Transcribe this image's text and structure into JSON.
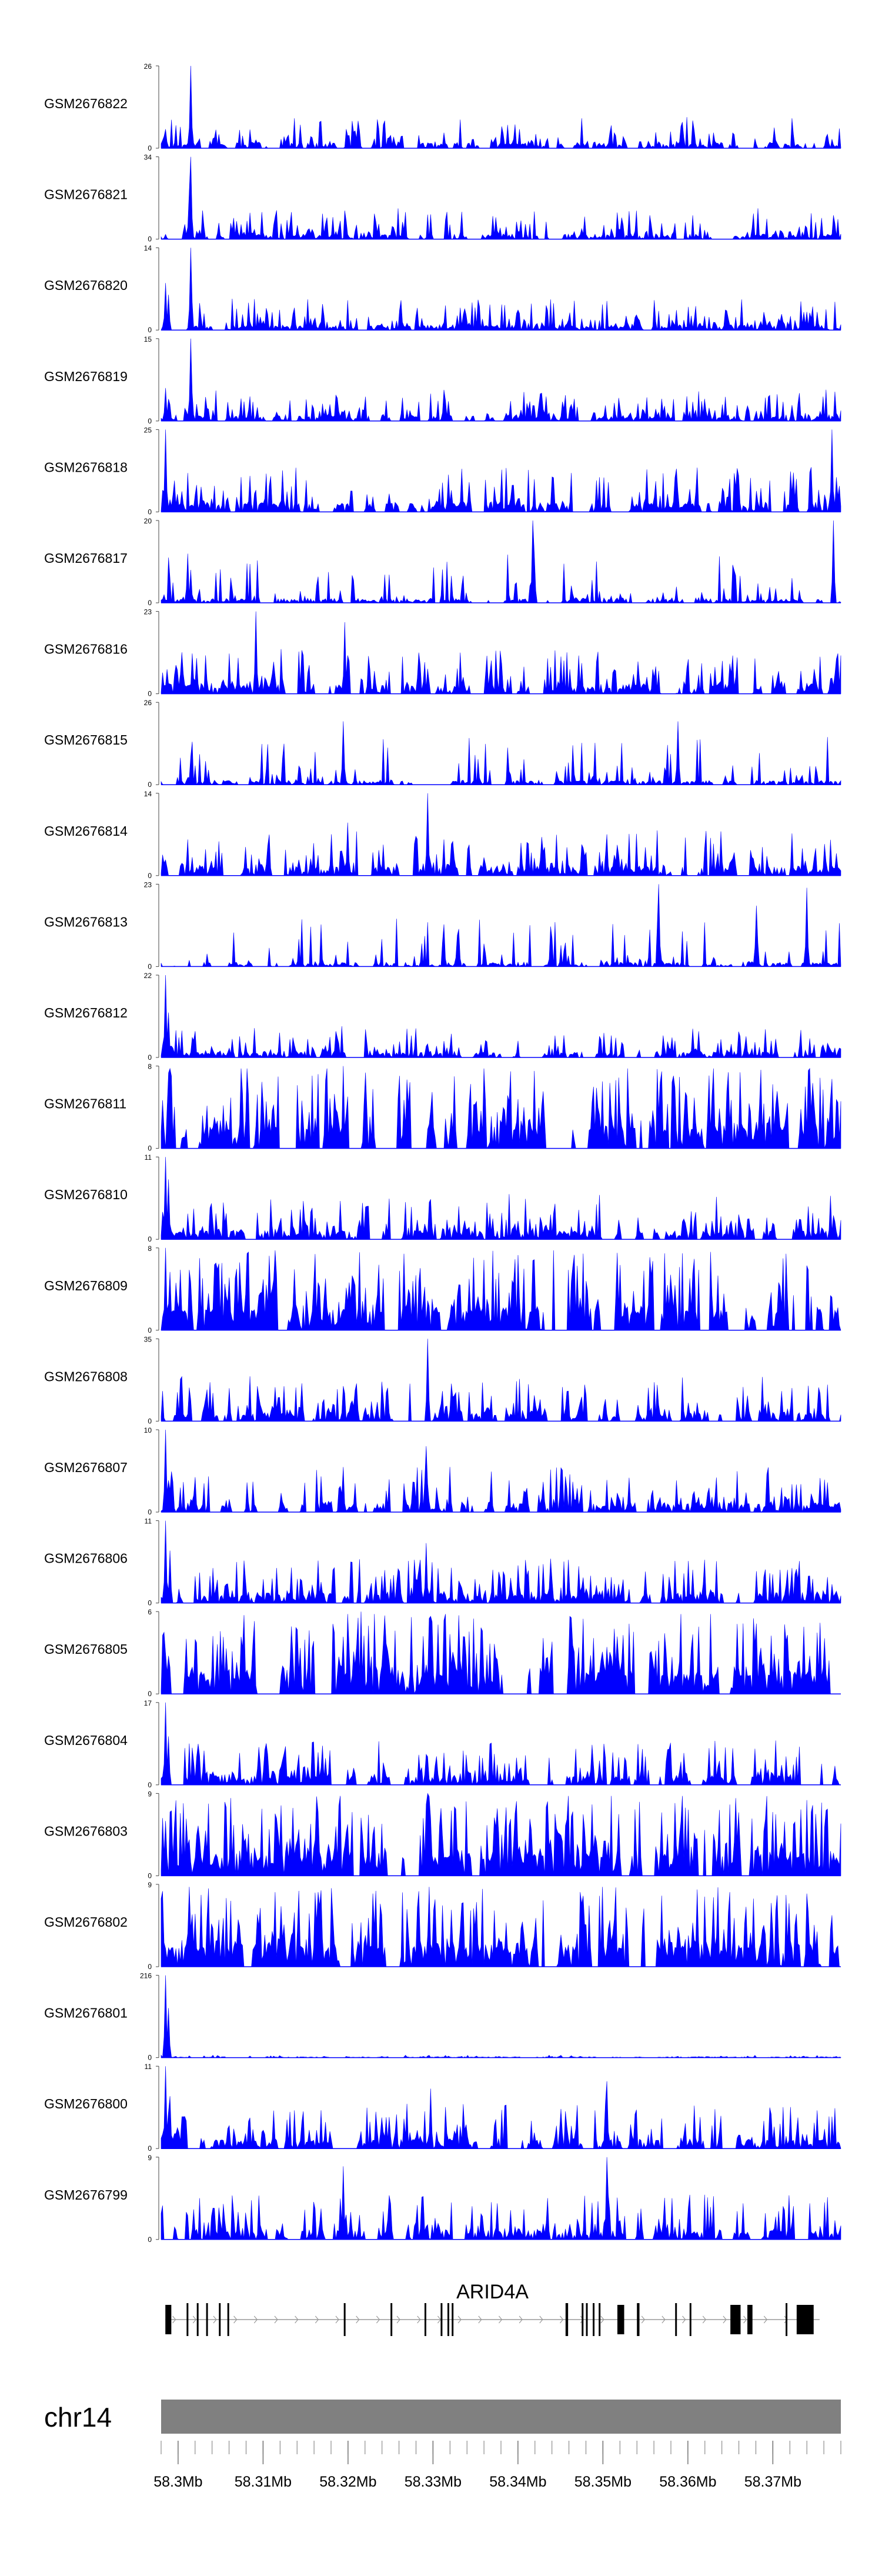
{
  "chart_data": {
    "type": "area",
    "color": "#0000ff",
    "gene_color": "#000000",
    "ideogram_color": "#808080",
    "x_range": [
      58.298,
      58.378
    ],
    "x_unit": "Mb",
    "x_ticks": [
      58.3,
      58.31,
      58.32,
      58.33,
      58.34,
      58.35,
      58.36,
      58.37
    ],
    "x_tick_labels": [
      "58.3Mb",
      "58.31Mb",
      "58.32Mb",
      "58.33Mb",
      "58.34Mb",
      "58.35Mb",
      "58.36Mb",
      "58.37Mb"
    ],
    "chromosome": "chr14",
    "gene": {
      "name": "ARID4A",
      "start": 58.2985,
      "end": 58.3755,
      "strand": "+",
      "exons": [
        [
          58.2985,
          58.2992
        ],
        [
          58.301,
          58.3012
        ],
        [
          58.3022,
          58.3024
        ],
        [
          58.3033,
          58.3035
        ],
        [
          58.3048,
          58.305
        ],
        [
          58.3058,
          58.306
        ],
        [
          58.3195,
          58.3197
        ],
        [
          58.325,
          58.3252
        ],
        [
          58.329,
          58.3292
        ],
        [
          58.3309,
          58.3311
        ],
        [
          58.3317,
          58.3319
        ],
        [
          58.3322,
          58.3324
        ],
        [
          58.3456,
          58.3459
        ],
        [
          58.3475,
          58.3477
        ],
        [
          58.348,
          58.3482
        ],
        [
          58.3488,
          58.349
        ],
        [
          58.3495,
          58.3497
        ],
        [
          58.3517,
          58.3525
        ],
        [
          58.354,
          58.3543
        ],
        [
          58.3585,
          58.3587
        ],
        [
          58.3602,
          58.3604
        ],
        [
          58.365,
          58.3662
        ],
        [
          58.367,
          58.3676
        ],
        [
          58.3715,
          58.3717
        ],
        [
          58.3728,
          58.3748
        ]
      ]
    },
    "tracks": [
      {
        "name": "GSM2676822",
        "ymax": 26,
        "style": "low",
        "seed": 22,
        "peaks": [
          [
            58.3014,
            26
          ],
          [
            58.2985,
            6
          ],
          [
            58.3762,
            3.5
          ]
        ]
      },
      {
        "name": "GSM2676821",
        "ymax": 34,
        "style": "low",
        "seed": 21,
        "peaks": [
          [
            58.3014,
            34
          ],
          [
            58.3013,
            20
          ],
          [
            58.2985,
            2
          ],
          [
            58.3334,
            6
          ]
        ]
      },
      {
        "name": "GSM2676820",
        "ymax": 14,
        "style": "low",
        "seed": 20,
        "peaks": [
          [
            58.3014,
            14
          ],
          [
            58.2985,
            8
          ],
          [
            58.2988,
            6
          ]
        ]
      },
      {
        "name": "GSM2676819",
        "ymax": 15,
        "style": "low",
        "seed": 19,
        "peaks": [
          [
            58.3014,
            15
          ],
          [
            58.2985,
            6
          ],
          [
            58.2988,
            4
          ]
        ]
      },
      {
        "name": "GSM2676818",
        "ymax": 25,
        "style": "med",
        "seed": 18,
        "peaks": [
          [
            58.2986,
            25
          ],
          [
            58.366,
            11
          ],
          [
            58.377,
            25
          ]
        ]
      },
      {
        "name": "GSM2676817",
        "ymax": 20,
        "style": "sparse",
        "seed": 17,
        "peaks": [
          [
            58.3418,
            20
          ],
          [
            58.342,
            12
          ],
          [
            58.3772,
            20
          ],
          [
            58.3015,
            8
          ]
        ]
      },
      {
        "name": "GSM2676816",
        "ymax": 23,
        "style": "med",
        "seed": 16,
        "peaks": [
          [
            58.3092,
            23
          ],
          [
            58.3196,
            20
          ],
          [
            58.307,
            10
          ]
        ]
      },
      {
        "name": "GSM2676815",
        "ymax": 26,
        "style": "sparse",
        "seed": 15,
        "peaks": [
          [
            58.3195,
            20
          ],
          [
            58.3588,
            20
          ],
          [
            58.3015,
            9
          ]
        ]
      },
      {
        "name": "GSM2676814",
        "ymax": 14,
        "style": "med",
        "seed": 14,
        "peaks": [
          [
            58.3294,
            14
          ],
          [
            58.32,
            9
          ]
        ]
      },
      {
        "name": "GSM2676813",
        "ymax": 23,
        "style": "sparse",
        "seed": 13,
        "peaks": [
          [
            58.3565,
            23
          ],
          [
            58.374,
            22
          ],
          [
            58.368,
            17
          ]
        ]
      },
      {
        "name": "GSM2676812",
        "ymax": 22,
        "style": "low",
        "seed": 12,
        "peaks": [
          [
            58.2985,
            22
          ],
          [
            58.2988,
            12
          ],
          [
            58.3185,
            7
          ],
          [
            58.3612,
            7
          ]
        ]
      },
      {
        "name": "GSM2676811",
        "ymax": 8,
        "style": "high",
        "seed": 11,
        "peaks": [
          [
            58.3195,
            8
          ],
          [
            58.3325,
            7
          ]
        ]
      },
      {
        "name": "GSM2676810",
        "ymax": 11,
        "style": "med",
        "seed": 10,
        "peaks": [
          [
            58.2986,
            11
          ],
          [
            58.2989,
            8
          ]
        ]
      },
      {
        "name": "GSM2676809",
        "ymax": 8,
        "style": "high",
        "seed": 9,
        "peaks": [
          [
            58.2985,
            8
          ],
          [
            58.3025,
            7
          ]
        ]
      },
      {
        "name": "GSM2676808",
        "ymax": 35,
        "style": "med",
        "seed": 8,
        "peaks": [
          [
            58.3293,
            35
          ],
          [
            58.306,
            14
          ]
        ]
      },
      {
        "name": "GSM2676807",
        "ymax": 10,
        "style": "med",
        "seed": 7,
        "peaks": [
          [
            58.2985,
            10
          ],
          [
            58.3292,
            8
          ]
        ]
      },
      {
        "name": "GSM2676806",
        "ymax": 11,
        "style": "med",
        "seed": 6,
        "peaks": [
          [
            58.2986,
            11
          ],
          [
            58.299,
            7
          ],
          [
            58.3292,
            8
          ]
        ]
      },
      {
        "name": "GSM2676805",
        "ymax": 6,
        "style": "high",
        "seed": 5,
        "peaks": [
          [
            58.3215,
            6
          ],
          [
            58.3295,
            5.5
          ]
        ]
      },
      {
        "name": "GSM2676804",
        "ymax": 17,
        "style": "med",
        "seed": 4,
        "peaks": [
          [
            58.2986,
            17
          ],
          [
            58.2989,
            10
          ]
        ]
      },
      {
        "name": "GSM2676803",
        "ymax": 9,
        "style": "high",
        "seed": 3,
        "peaks": [
          [
            58.3293,
            9
          ],
          [
            58.2986,
            6
          ]
        ]
      },
      {
        "name": "GSM2676802",
        "ymax": 9,
        "style": "high",
        "seed": 2,
        "peaks": [
          [
            58.323,
            8
          ],
          [
            58.3335,
            7
          ]
        ]
      },
      {
        "name": "GSM2676801",
        "ymax": 216,
        "style": "flat",
        "seed": 1,
        "peaks": [
          [
            58.2985,
            216
          ],
          [
            58.2988,
            130
          ]
        ]
      },
      {
        "name": "GSM2676800",
        "ymax": 11,
        "style": "med",
        "seed": 31,
        "peaks": [
          [
            58.2986,
            11
          ],
          [
            58.299,
            7
          ],
          [
            58.3298,
            8
          ],
          [
            58.3505,
            9
          ]
        ]
      },
      {
        "name": "GSM2676799",
        "ymax": 9,
        "style": "med",
        "seed": 32,
        "peaks": [
          [
            58.3505,
            9
          ],
          [
            58.3195,
            8
          ]
        ]
      }
    ]
  }
}
